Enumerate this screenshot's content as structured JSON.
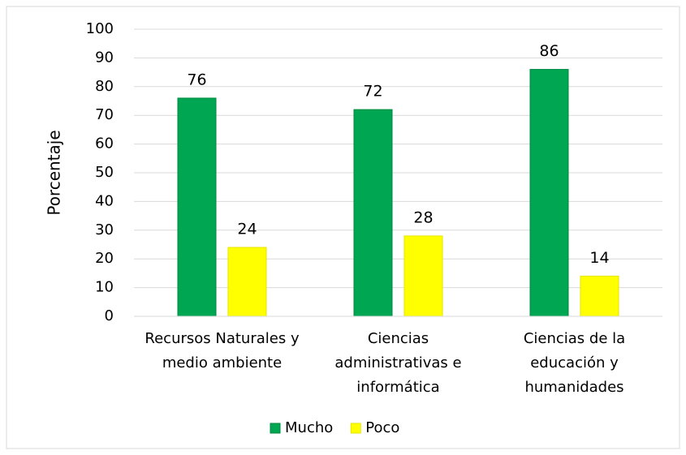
{
  "chart_data": {
    "type": "bar",
    "y_label": "Porcentaje",
    "categories": [
      "Recursos Naturales y medio ambiente",
      "Ciencias administrativas e informática",
      "Ciencias de la educación y humanidades"
    ],
    "series": [
      {
        "name": "Mucho",
        "color": "#00a651",
        "values": [
          76,
          72,
          86
        ]
      },
      {
        "name": "Poco",
        "color": "#ffff00",
        "values": [
          24,
          28,
          14
        ]
      }
    ],
    "ylim": [
      0,
      100
    ],
    "yticks": [
      0,
      10,
      20,
      30,
      40,
      50,
      60,
      70,
      80,
      90,
      100
    ],
    "grid": true,
    "legend": "bottom"
  }
}
